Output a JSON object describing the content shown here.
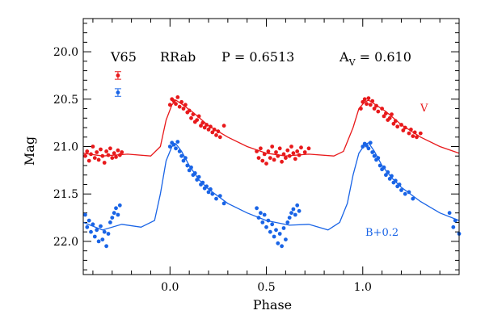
{
  "chart_data": {
    "type": "scatter",
    "title": "",
    "xlabel": "Phase",
    "ylabel": "Mag",
    "xlim": [
      -0.45,
      1.5
    ],
    "ylim": [
      22.35,
      19.65
    ],
    "y_inverted": true,
    "x_ticks": [
      {
        "value": 0.0,
        "label": "0.0"
      },
      {
        "value": 0.5,
        "label": "0.5"
      },
      {
        "value": 1.0,
        "label": "1.0"
      }
    ],
    "y_ticks": [
      {
        "value": 20.0,
        "label": "20.0"
      },
      {
        "value": 20.5,
        "label": "20.5"
      },
      {
        "value": 21.0,
        "label": "21.0"
      },
      {
        "value": 21.5,
        "label": "21.5"
      },
      {
        "value": 22.0,
        "label": "22.0"
      }
    ],
    "x_minor_step": 0.1,
    "y_minor_step": 0.1,
    "annotations": {
      "star": "V65",
      "type": "RRab",
      "period_label": "P = 0.6513",
      "amp_prefix": "A",
      "amp_sub": "V",
      "amp_value": " = 0.610"
    },
    "series": [
      {
        "name": "V",
        "color": "#e8191b",
        "offset": 0.0,
        "errorbar": {
          "x": -0.27,
          "y": 20.25,
          "err": 0.04
        },
        "curve": [
          [
            -0.45,
            21.07
          ],
          [
            -0.35,
            21.1
          ],
          [
            -0.22,
            21.08
          ],
          [
            -0.1,
            21.1
          ],
          [
            -0.05,
            21.0
          ],
          [
            -0.02,
            20.72
          ],
          [
            0.01,
            20.56
          ],
          [
            0.03,
            20.51
          ],
          [
            0.06,
            20.55
          ],
          [
            0.12,
            20.64
          ],
          [
            0.2,
            20.78
          ],
          [
            0.3,
            20.9
          ],
          [
            0.4,
            21.0
          ],
          [
            0.5,
            21.07
          ],
          [
            0.6,
            21.1
          ],
          [
            0.72,
            21.08
          ],
          [
            0.85,
            21.1
          ],
          [
            0.9,
            21.05
          ],
          [
            0.95,
            20.8
          ],
          [
            0.98,
            20.6
          ],
          [
            1.01,
            20.53
          ],
          [
            1.03,
            20.51
          ],
          [
            1.06,
            20.55
          ],
          [
            1.12,
            20.63
          ],
          [
            1.2,
            20.77
          ],
          [
            1.3,
            20.9
          ],
          [
            1.4,
            21.0
          ],
          [
            1.5,
            21.07
          ]
        ],
        "points": [
          [
            -0.44,
            21.1
          ],
          [
            -0.43,
            21.05
          ],
          [
            -0.42,
            21.15
          ],
          [
            -0.41,
            21.08
          ],
          [
            -0.4,
            21.0
          ],
          [
            -0.39,
            21.12
          ],
          [
            -0.38,
            21.06
          ],
          [
            -0.37,
            21.14
          ],
          [
            -0.36,
            21.03
          ],
          [
            -0.35,
            21.1
          ],
          [
            -0.34,
            21.17
          ],
          [
            -0.33,
            21.05
          ],
          [
            -0.32,
            21.09
          ],
          [
            -0.31,
            21.02
          ],
          [
            -0.3,
            21.12
          ],
          [
            -0.29,
            21.07
          ],
          [
            -0.28,
            21.11
          ],
          [
            -0.27,
            21.04
          ],
          [
            -0.26,
            21.09
          ],
          [
            -0.25,
            21.06
          ],
          [
            0.0,
            20.56
          ],
          [
            0.01,
            20.5
          ],
          [
            0.02,
            20.52
          ],
          [
            0.03,
            20.55
          ],
          [
            0.04,
            20.48
          ],
          [
            0.05,
            20.58
          ],
          [
            0.06,
            20.53
          ],
          [
            0.07,
            20.6
          ],
          [
            0.08,
            20.56
          ],
          [
            0.09,
            20.64
          ],
          [
            0.1,
            20.62
          ],
          [
            0.11,
            20.7
          ],
          [
            0.12,
            20.66
          ],
          [
            0.13,
            20.74
          ],
          [
            0.14,
            20.72
          ],
          [
            0.15,
            20.68
          ],
          [
            0.16,
            20.78
          ],
          [
            0.17,
            20.75
          ],
          [
            0.18,
            20.8
          ],
          [
            0.19,
            20.77
          ],
          [
            0.2,
            20.82
          ],
          [
            0.21,
            20.79
          ],
          [
            0.22,
            20.85
          ],
          [
            0.23,
            20.82
          ],
          [
            0.24,
            20.88
          ],
          [
            0.25,
            20.84
          ],
          [
            0.26,
            20.9
          ],
          [
            0.28,
            20.78
          ],
          [
            0.45,
            21.05
          ],
          [
            0.46,
            21.12
          ],
          [
            0.47,
            21.02
          ],
          [
            0.48,
            21.15
          ],
          [
            0.49,
            21.08
          ],
          [
            0.5,
            21.18
          ],
          [
            0.51,
            21.05
          ],
          [
            0.52,
            21.12
          ],
          [
            0.53,
            21.0
          ],
          [
            0.54,
            21.14
          ],
          [
            0.55,
            21.06
          ],
          [
            0.56,
            21.1
          ],
          [
            0.57,
            21.02
          ],
          [
            0.58,
            21.16
          ],
          [
            0.59,
            21.08
          ],
          [
            0.6,
            21.12
          ],
          [
            0.61,
            21.04
          ],
          [
            0.62,
            21.1
          ],
          [
            0.63,
            21.0
          ],
          [
            0.64,
            21.07
          ],
          [
            0.65,
            21.13
          ],
          [
            0.66,
            21.05
          ],
          [
            0.67,
            21.09
          ],
          [
            0.68,
            21.01
          ],
          [
            0.7,
            21.06
          ],
          [
            0.72,
            21.02
          ],
          [
            0.99,
            20.6
          ],
          [
            1.0,
            20.53
          ],
          [
            1.01,
            20.5
          ],
          [
            1.02,
            20.55
          ],
          [
            1.03,
            20.49
          ],
          [
            1.04,
            20.56
          ],
          [
            1.05,
            20.52
          ],
          [
            1.06,
            20.6
          ],
          [
            1.07,
            20.57
          ],
          [
            1.08,
            20.63
          ],
          [
            1.1,
            20.6
          ],
          [
            1.11,
            20.68
          ],
          [
            1.12,
            20.65
          ],
          [
            1.13,
            20.72
          ],
          [
            1.14,
            20.7
          ],
          [
            1.15,
            20.66
          ],
          [
            1.16,
            20.76
          ],
          [
            1.17,
            20.73
          ],
          [
            1.18,
            20.79
          ],
          [
            1.2,
            20.77
          ],
          [
            1.21,
            20.83
          ],
          [
            1.22,
            20.8
          ],
          [
            1.24,
            20.86
          ],
          [
            1.25,
            20.82
          ],
          [
            1.26,
            20.89
          ],
          [
            1.27,
            20.85
          ],
          [
            1.28,
            20.9
          ],
          [
            1.3,
            20.86
          ]
        ]
      },
      {
        "name": "B+0.2",
        "color": "#1964e6",
        "offset": 0.2,
        "errorbar": {
          "x": -0.27,
          "y": 20.43,
          "err": 0.04
        },
        "curve": [
          [
            -0.45,
            21.8
          ],
          [
            -0.35,
            21.88
          ],
          [
            -0.25,
            21.82
          ],
          [
            -0.15,
            21.85
          ],
          [
            -0.08,
            21.78
          ],
          [
            -0.05,
            21.5
          ],
          [
            -0.02,
            21.15
          ],
          [
            0.01,
            21.0
          ],
          [
            0.03,
            20.97
          ],
          [
            0.06,
            21.05
          ],
          [
            0.1,
            21.2
          ],
          [
            0.15,
            21.35
          ],
          [
            0.2,
            21.45
          ],
          [
            0.3,
            21.6
          ],
          [
            0.4,
            21.7
          ],
          [
            0.5,
            21.78
          ],
          [
            0.62,
            21.83
          ],
          [
            0.72,
            21.82
          ],
          [
            0.82,
            21.88
          ],
          [
            0.88,
            21.8
          ],
          [
            0.92,
            21.6
          ],
          [
            0.95,
            21.3
          ],
          [
            0.98,
            21.07
          ],
          [
            1.01,
            20.98
          ],
          [
            1.03,
            20.96
          ],
          [
            1.06,
            21.05
          ],
          [
            1.1,
            21.2
          ],
          [
            1.15,
            21.33
          ],
          [
            1.2,
            21.43
          ],
          [
            1.3,
            21.58
          ],
          [
            1.4,
            21.7
          ],
          [
            1.5,
            21.78
          ]
        ],
        "points": [
          [
            -0.44,
            21.72
          ],
          [
            -0.43,
            21.85
          ],
          [
            -0.42,
            21.78
          ],
          [
            -0.41,
            21.9
          ],
          [
            -0.4,
            21.82
          ],
          [
            -0.39,
            21.95
          ],
          [
            -0.38,
            21.88
          ],
          [
            -0.37,
            22.0
          ],
          [
            -0.36,
            21.84
          ],
          [
            -0.35,
            21.98
          ],
          [
            -0.34,
            21.9
          ],
          [
            -0.33,
            22.05
          ],
          [
            -0.32,
            21.92
          ],
          [
            -0.31,
            21.8
          ],
          [
            -0.3,
            21.75
          ],
          [
            -0.29,
            21.7
          ],
          [
            -0.28,
            21.65
          ],
          [
            -0.27,
            21.72
          ],
          [
            -0.26,
            21.62
          ],
          [
            0.0,
            21.0
          ],
          [
            0.01,
            20.96
          ],
          [
            0.02,
            20.98
          ],
          [
            0.03,
            21.02
          ],
          [
            0.04,
            20.95
          ],
          [
            0.05,
            21.05
          ],
          [
            0.06,
            21.1
          ],
          [
            0.07,
            21.15
          ],
          [
            0.08,
            21.12
          ],
          [
            0.09,
            21.2
          ],
          [
            0.1,
            21.25
          ],
          [
            0.11,
            21.22
          ],
          [
            0.12,
            21.3
          ],
          [
            0.13,
            21.28
          ],
          [
            0.14,
            21.35
          ],
          [
            0.15,
            21.32
          ],
          [
            0.16,
            21.4
          ],
          [
            0.17,
            21.38
          ],
          [
            0.18,
            21.44
          ],
          [
            0.19,
            21.42
          ],
          [
            0.2,
            21.48
          ],
          [
            0.21,
            21.45
          ],
          [
            0.22,
            21.5
          ],
          [
            0.24,
            21.55
          ],
          [
            0.26,
            21.52
          ],
          [
            0.28,
            21.6
          ],
          [
            0.45,
            21.65
          ],
          [
            0.46,
            21.75
          ],
          [
            0.47,
            21.7
          ],
          [
            0.48,
            21.8
          ],
          [
            0.49,
            21.72
          ],
          [
            0.5,
            21.85
          ],
          [
            0.51,
            21.78
          ],
          [
            0.52,
            21.9
          ],
          [
            0.53,
            21.82
          ],
          [
            0.54,
            21.95
          ],
          [
            0.55,
            21.88
          ],
          [
            0.56,
            22.02
          ],
          [
            0.57,
            21.92
          ],
          [
            0.58,
            22.05
          ],
          [
            0.59,
            21.86
          ],
          [
            0.6,
            21.98
          ],
          [
            0.61,
            21.8
          ],
          [
            0.62,
            21.75
          ],
          [
            0.63,
            21.7
          ],
          [
            0.64,
            21.66
          ],
          [
            0.65,
            21.72
          ],
          [
            0.66,
            21.62
          ],
          [
            0.67,
            21.68
          ],
          [
            1.0,
            21.0
          ],
          [
            1.01,
            20.97
          ],
          [
            1.02,
            20.99
          ],
          [
            1.03,
            21.02
          ],
          [
            1.04,
            20.96
          ],
          [
            1.05,
            21.06
          ],
          [
            1.06,
            21.1
          ],
          [
            1.07,
            21.14
          ],
          [
            1.08,
            21.12
          ],
          [
            1.09,
            21.2
          ],
          [
            1.1,
            21.24
          ],
          [
            1.11,
            21.22
          ],
          [
            1.12,
            21.3
          ],
          [
            1.13,
            21.27
          ],
          [
            1.14,
            21.34
          ],
          [
            1.15,
            21.31
          ],
          [
            1.16,
            21.38
          ],
          [
            1.17,
            21.36
          ],
          [
            1.18,
            21.42
          ],
          [
            1.19,
            21.4
          ],
          [
            1.2,
            21.46
          ],
          [
            1.22,
            21.5
          ],
          [
            1.24,
            21.48
          ],
          [
            1.26,
            21.55
          ],
          [
            1.45,
            21.7
          ],
          [
            1.47,
            21.85
          ],
          [
            1.48,
            21.78
          ],
          [
            1.5,
            21.92
          ]
        ]
      }
    ]
  }
}
